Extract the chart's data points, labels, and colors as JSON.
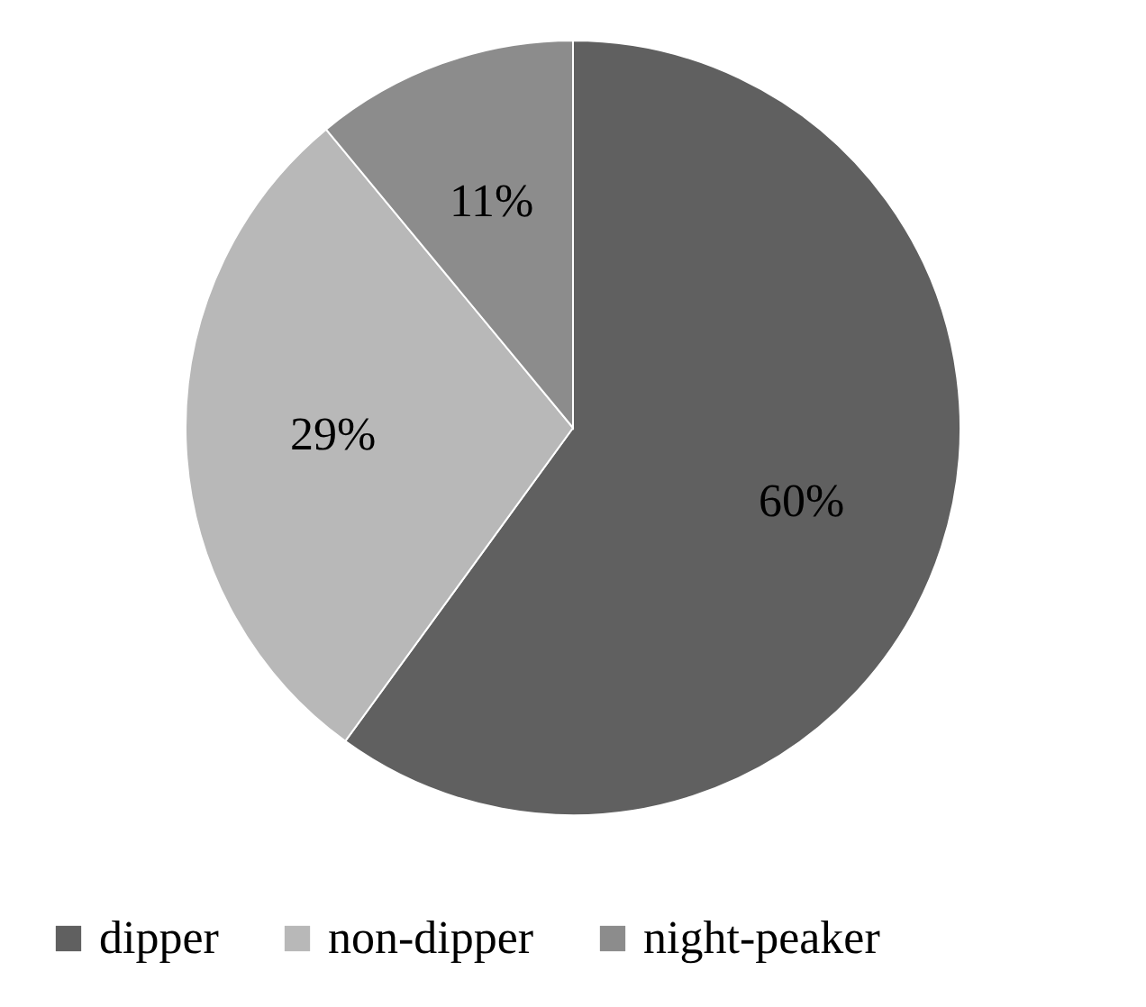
{
  "chart_data": {
    "type": "pie",
    "categories": [
      "dipper",
      "non-dipper",
      "night-peaker"
    ],
    "values": [
      60,
      29,
      11
    ],
    "colors": [
      "#606060",
      "#b8b8b8",
      "#8c8c8c"
    ],
    "value_labels": [
      "60%",
      "29%",
      "11%"
    ],
    "legend": "bottom"
  }
}
